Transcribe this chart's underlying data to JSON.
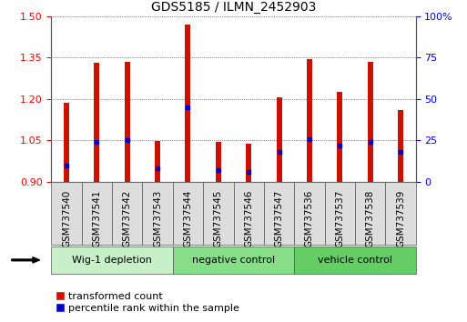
{
  "title": "GDS5185 / ILMN_2452903",
  "samples": [
    "GSM737540",
    "GSM737541",
    "GSM737542",
    "GSM737543",
    "GSM737544",
    "GSM737545",
    "GSM737546",
    "GSM737547",
    "GSM737536",
    "GSM737537",
    "GSM737538",
    "GSM737539"
  ],
  "transformed_count": [
    1.185,
    1.33,
    1.335,
    1.048,
    1.47,
    1.045,
    1.038,
    1.205,
    1.345,
    1.225,
    1.335,
    1.16
  ],
  "percentile_rank": [
    10,
    24,
    25,
    8,
    45,
    7,
    6,
    18,
    26,
    22,
    24,
    18
  ],
  "groups": [
    {
      "label": "Wig-1 depletion",
      "start": 0,
      "end": 4,
      "color": "#c8f0c8"
    },
    {
      "label": "negative control",
      "start": 4,
      "end": 8,
      "color": "#88dd88"
    },
    {
      "label": "vehicle control",
      "start": 8,
      "end": 12,
      "color": "#66cc66"
    }
  ],
  "ylim_left": [
    0.9,
    1.5
  ],
  "ylim_right": [
    0,
    100
  ],
  "yticks_left": [
    0.9,
    1.05,
    1.2,
    1.35,
    1.5
  ],
  "yticks_right": [
    0,
    25,
    50,
    75,
    100
  ],
  "bar_color": "#cc1100",
  "percentile_color": "#0000cc",
  "bar_width": 0.18,
  "base_value": 0.9,
  "grid_color": "#222222",
  "bg_color": "#ffffff",
  "label_fontsize": 7.5,
  "title_fontsize": 10,
  "sample_box_color": "#dddddd",
  "sample_box_edge": "#555555"
}
